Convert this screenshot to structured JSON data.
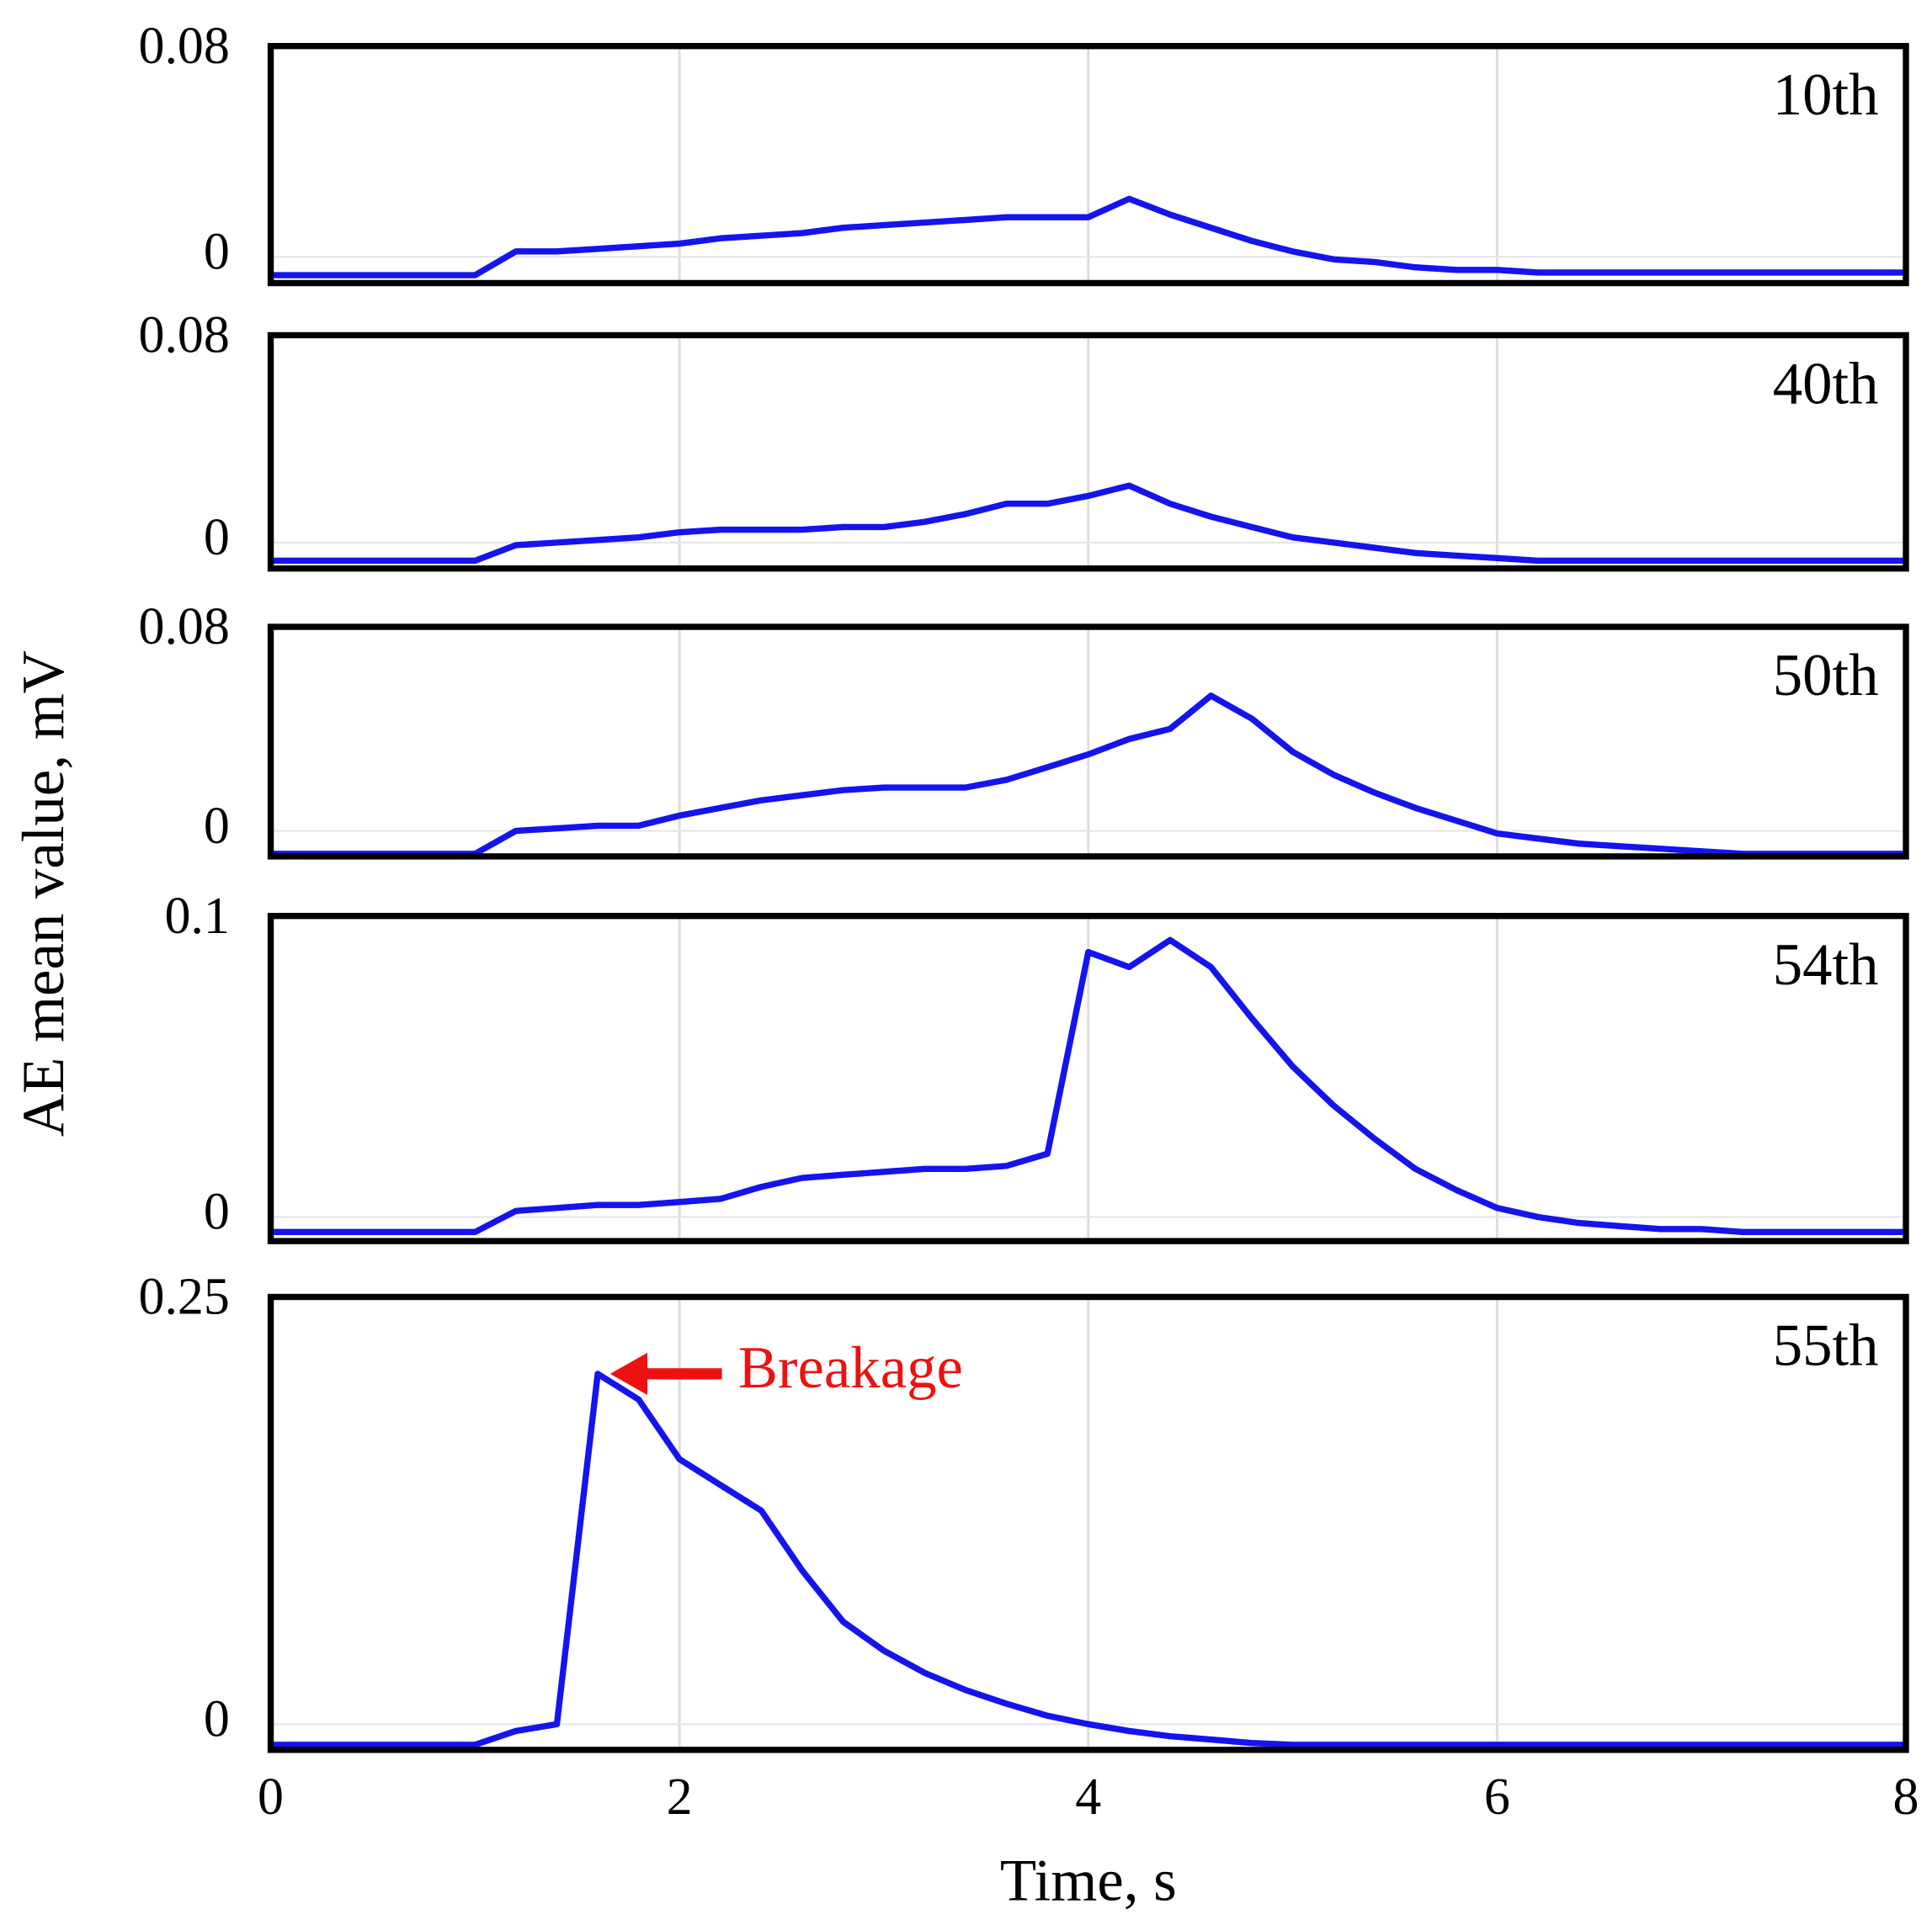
{
  "ylabel": "AE mean value, mV",
  "chart_data": [
    {
      "type": "line",
      "label": "10th",
      "xlim": [
        0,
        8
      ],
      "ylim": [
        -0.01,
        0.08
      ],
      "yticks": [
        0,
        0.08
      ],
      "grid": true,
      "x": [
        0,
        0.2,
        0.4,
        0.6,
        0.8,
        1,
        1.2,
        1.4,
        1.6,
        1.8,
        2,
        2.2,
        2.4,
        2.6,
        2.8,
        3,
        3.2,
        3.4,
        3.6,
        3.8,
        4,
        4.2,
        4.4,
        4.6,
        4.8,
        5,
        5.2,
        5.4,
        5.6,
        5.8,
        6,
        6.2,
        6.4,
        6.6,
        6.8,
        7,
        7.2,
        7.4,
        7.6,
        7.8,
        8
      ],
      "series": [
        {
          "color": "#1414ee",
          "values": [
            -0.007,
            -0.007,
            -0.007,
            -0.007,
            -0.007,
            -0.007,
            0.002,
            0.002,
            0.003,
            0.004,
            0.005,
            0.007,
            0.008,
            0.009,
            0.011,
            0.012,
            0.013,
            0.014,
            0.015,
            0.015,
            0.015,
            0.022,
            0.016,
            0.011,
            0.006,
            0.002,
            -0.001,
            -0.002,
            -0.004,
            -0.005,
            -0.005,
            -0.006,
            -0.006,
            -0.006,
            -0.006,
            -0.006,
            -0.006,
            -0.006,
            -0.006,
            -0.006,
            -0.006
          ]
        }
      ]
    },
    {
      "type": "line",
      "label": "40th",
      "xlim": [
        0,
        8
      ],
      "ylim": [
        -0.01,
        0.08
      ],
      "yticks": [
        0,
        0.08
      ],
      "grid": true,
      "x": [
        0,
        0.2,
        0.4,
        0.6,
        0.8,
        1,
        1.2,
        1.4,
        1.6,
        1.8,
        2,
        2.2,
        2.4,
        2.6,
        2.8,
        3,
        3.2,
        3.4,
        3.6,
        3.8,
        4,
        4.2,
        4.4,
        4.6,
        4.8,
        5,
        5.2,
        5.4,
        5.6,
        5.8,
        6,
        6.2,
        6.4,
        6.6,
        6.8,
        7,
        7.2,
        7.4,
        7.6,
        7.8,
        8
      ],
      "series": [
        {
          "color": "#1414ee",
          "values": [
            -0.007,
            -0.007,
            -0.007,
            -0.007,
            -0.007,
            -0.007,
            -0.001,
            0.0,
            0.001,
            0.002,
            0.004,
            0.005,
            0.005,
            0.005,
            0.006,
            0.006,
            0.008,
            0.011,
            0.015,
            0.015,
            0.018,
            0.022,
            0.015,
            0.01,
            0.006,
            0.002,
            0.0,
            -0.002,
            -0.004,
            -0.005,
            -0.006,
            -0.007,
            -0.007,
            -0.007,
            -0.007,
            -0.007,
            -0.007,
            -0.007,
            -0.007,
            -0.007,
            -0.007
          ]
        }
      ]
    },
    {
      "type": "line",
      "label": "50th",
      "xlim": [
        0,
        8
      ],
      "ylim": [
        -0.01,
        0.08
      ],
      "yticks": [
        0,
        0.08
      ],
      "grid": true,
      "x": [
        0,
        0.2,
        0.4,
        0.6,
        0.8,
        1,
        1.2,
        1.4,
        1.6,
        1.8,
        2,
        2.2,
        2.4,
        2.6,
        2.8,
        3,
        3.2,
        3.4,
        3.6,
        3.8,
        4,
        4.2,
        4.4,
        4.6,
        4.8,
        5,
        5.2,
        5.4,
        5.6,
        5.8,
        6,
        6.2,
        6.4,
        6.6,
        6.8,
        7,
        7.2,
        7.4,
        7.6,
        7.8,
        8
      ],
      "series": [
        {
          "color": "#1414ee",
          "values": [
            -0.009,
            -0.009,
            -0.009,
            -0.009,
            -0.009,
            -0.009,
            0.0,
            0.001,
            0.002,
            0.002,
            0.006,
            0.009,
            0.012,
            0.014,
            0.016,
            0.017,
            0.017,
            0.017,
            0.02,
            0.025,
            0.03,
            0.036,
            0.04,
            0.053,
            0.044,
            0.031,
            0.022,
            0.015,
            0.009,
            0.004,
            -0.001,
            -0.003,
            -0.005,
            -0.006,
            -0.007,
            -0.008,
            -0.009,
            -0.009,
            -0.009,
            -0.009,
            -0.009
          ]
        }
      ]
    },
    {
      "type": "line",
      "label": "54th",
      "xlim": [
        0,
        8
      ],
      "ylim": [
        -0.008,
        0.1
      ],
      "yticks": [
        0,
        0.1
      ],
      "grid": true,
      "x": [
        0,
        0.2,
        0.4,
        0.6,
        0.8,
        1,
        1.2,
        1.4,
        1.6,
        1.8,
        2,
        2.2,
        2.4,
        2.6,
        2.8,
        3,
        3.2,
        3.4,
        3.6,
        3.8,
        4,
        4.2,
        4.4,
        4.6,
        4.8,
        5,
        5.2,
        5.4,
        5.6,
        5.8,
        6,
        6.2,
        6.4,
        6.6,
        6.8,
        7,
        7.2,
        7.4,
        7.6,
        7.8,
        8
      ],
      "series": [
        {
          "color": "#1414ee",
          "values": [
            -0.005,
            -0.005,
            -0.005,
            -0.005,
            -0.005,
            -0.005,
            0.002,
            0.003,
            0.004,
            0.004,
            0.005,
            0.006,
            0.01,
            0.013,
            0.014,
            0.015,
            0.016,
            0.016,
            0.017,
            0.021,
            0.088,
            0.083,
            0.092,
            0.083,
            0.066,
            0.05,
            0.037,
            0.026,
            0.016,
            0.009,
            0.003,
            0.0,
            -0.002,
            -0.003,
            -0.004,
            -0.004,
            -0.005,
            -0.005,
            -0.005,
            -0.005,
            -0.005
          ]
        }
      ]
    },
    {
      "type": "line",
      "label": "55th",
      "annotation": "Breakage",
      "xlabel": "Time, s",
      "xlim": [
        0,
        8
      ],
      "xticks": [
        0,
        2,
        4,
        6,
        8
      ],
      "ylim": [
        -0.015,
        0.25
      ],
      "yticks": [
        0,
        0.25
      ],
      "grid": true,
      "x": [
        0,
        0.2,
        0.4,
        0.6,
        0.8,
        1,
        1.2,
        1.4,
        1.6,
        1.8,
        2,
        2.2,
        2.4,
        2.6,
        2.8,
        3,
        3.2,
        3.4,
        3.6,
        3.8,
        4,
        4.2,
        4.4,
        4.6,
        4.8,
        5,
        5.2,
        5.4,
        5.6,
        5.8,
        6,
        6.2,
        6.4,
        6.6,
        6.8,
        7,
        7.2,
        7.4,
        7.6,
        7.8,
        8
      ],
      "series": [
        {
          "color": "#1414ee",
          "values": [
            -0.012,
            -0.012,
            -0.012,
            -0.012,
            -0.012,
            -0.012,
            -0.004,
            0.0,
            0.205,
            0.19,
            0.155,
            0.14,
            0.125,
            0.09,
            0.06,
            0.043,
            0.03,
            0.02,
            0.012,
            0.005,
            0.0,
            -0.004,
            -0.007,
            -0.009,
            -0.011,
            -0.012,
            -0.012,
            -0.012,
            -0.012,
            -0.012,
            -0.012,
            -0.012,
            -0.012,
            -0.012,
            -0.012,
            -0.012,
            -0.012,
            -0.012,
            -0.012,
            -0.012,
            -0.012
          ]
        }
      ]
    }
  ]
}
